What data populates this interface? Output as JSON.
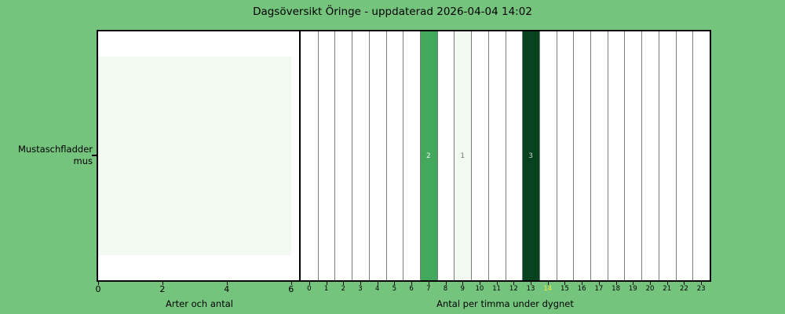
{
  "title": "Dagsöversikt Öringe - uppdaterad 2026-04-04 14:02",
  "colors": {
    "background": "#74c47e",
    "panel_background": "#ffffff",
    "panel_border": "#000000",
    "gridline": "#7d7d7d",
    "tick_label": "#000000",
    "highlight_tick": "#e9e93b",
    "value_colors": {
      "0": "#ffffff",
      "1": "#f2f9f0",
      "2": "#42a85c",
      "3": "#06431e"
    },
    "value_label_colors": {
      "1": "#757575",
      "2": "#f5f5f5",
      "3": "#c9d2c9"
    }
  },
  "chart_data": [
    {
      "type": "bar",
      "orientation": "horizontal",
      "categories": [
        "Mustaschfladdermus"
      ],
      "category_display_lines": [
        [
          "Mustaschfladder",
          "mus"
        ]
      ],
      "values": [
        6
      ],
      "bar_color": "#f2f9f0",
      "xlabel": "Arter och antal",
      "xticks": [
        0,
        2,
        4,
        6
      ],
      "xlim": [
        0,
        6.3
      ],
      "grid": false
    },
    {
      "type": "heatmap",
      "xlabel": "Antal per timma under dygnet",
      "xticklabels": [
        "0",
        "1",
        "2",
        "3",
        "4",
        "5",
        "6",
        "7",
        "8",
        "9",
        "10",
        "11",
        "12",
        "13",
        "14",
        "15",
        "16",
        "17",
        "18",
        "19",
        "20",
        "21",
        "22",
        "23"
      ],
      "values": [
        0,
        0,
        0,
        0,
        0,
        0,
        0,
        2,
        0,
        1,
        0,
        0,
        0,
        3,
        0,
        0,
        0,
        0,
        0,
        0,
        0,
        0,
        0,
        0
      ],
      "highlighted_hour": 14,
      "grid": true,
      "xlim": [
        0,
        24
      ]
    }
  ]
}
